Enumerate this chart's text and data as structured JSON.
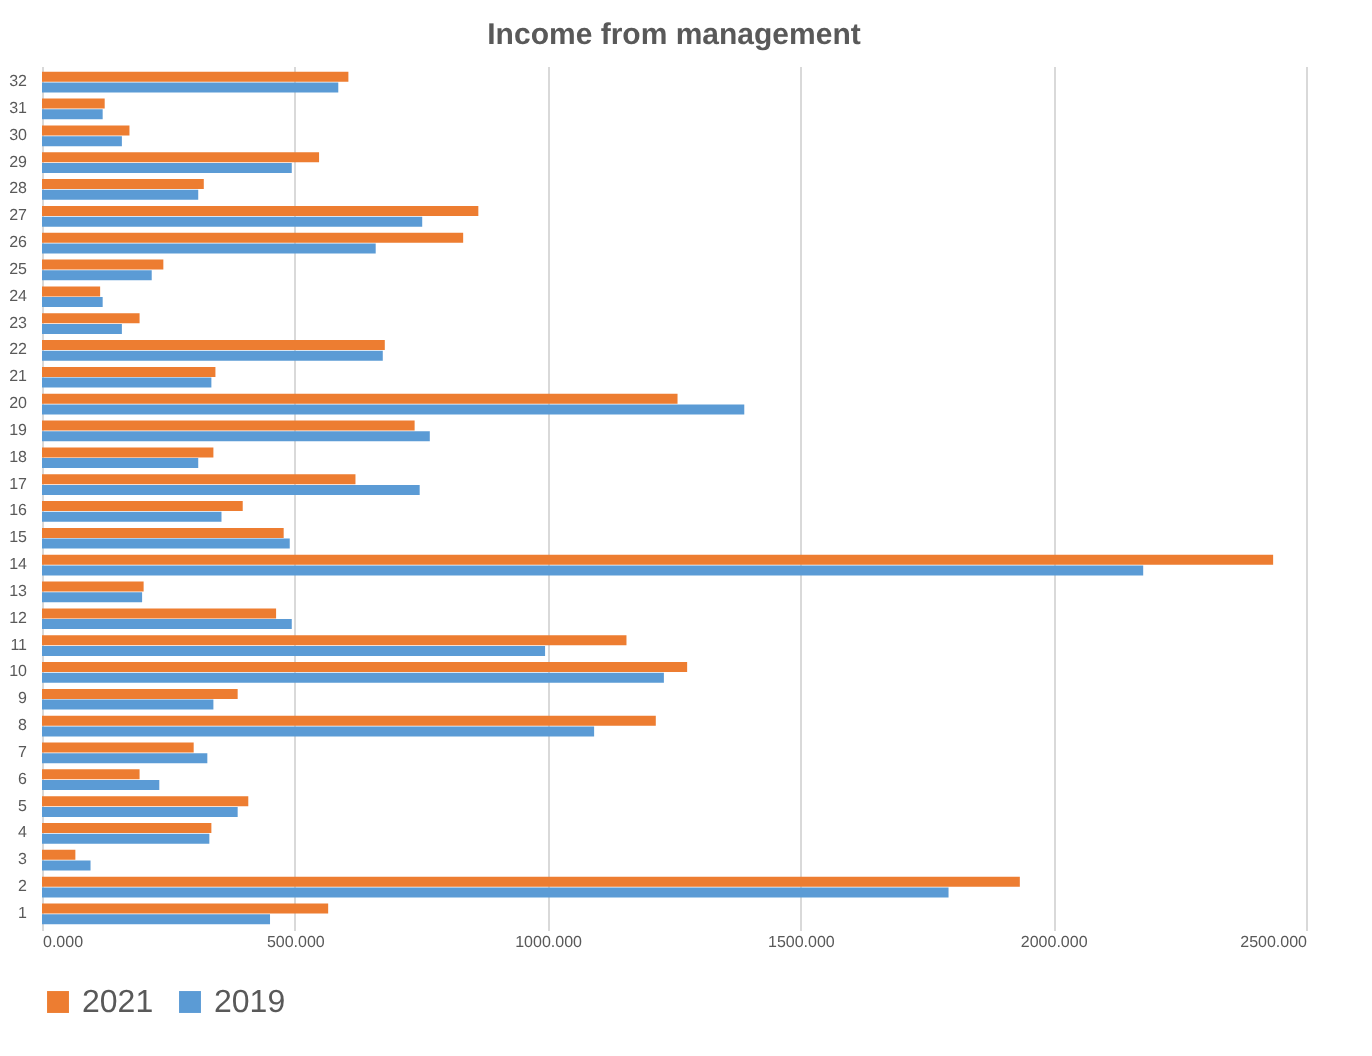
{
  "chart_data": {
    "type": "bar",
    "orientation": "horizontal",
    "title": "Income from management",
    "categories": [
      "32",
      "31",
      "30",
      "29",
      "28",
      "27",
      "26",
      "25",
      "24",
      "23",
      "22",
      "21",
      "20",
      "19",
      "18",
      "17",
      "16",
      "15",
      "14",
      "13",
      "12",
      "11",
      "10",
      "9",
      "8",
      "7",
      "6",
      "5",
      "4",
      "3",
      "2",
      "1"
    ],
    "series": [
      {
        "name": "2021",
        "color": "#ed7d31",
        "values": [
          606,
          124,
          173,
          548,
          320,
          863,
          833,
          240,
          115,
          193,
          678,
          343,
          1257,
          737,
          339,
          620,
          397,
          478,
          2435,
          201,
          463,
          1156,
          1276,
          387,
          1214,
          300,
          193,
          408,
          335,
          66,
          1934,
          566
        ]
      },
      {
        "name": "2019",
        "color": "#5b9bd5",
        "values": [
          586,
          120,
          158,
          494,
          309,
          752,
          660,
          217,
          120,
          158,
          674,
          335,
          1389,
          767,
          309,
          747,
          355,
          490,
          2178,
          198,
          494,
          995,
          1230,
          339,
          1092,
          327,
          232,
          387,
          331,
          96,
          1793,
          451
        ]
      }
    ],
    "xlim": [
      0,
      2500
    ],
    "xticks": [
      {
        "value": 0,
        "label": "0.000"
      },
      {
        "value": 500,
        "label": "500.000"
      },
      {
        "value": 1000,
        "label": "1000.000"
      },
      {
        "value": 1500,
        "label": "1500.000"
      },
      {
        "value": 2000,
        "label": "2000.000"
      },
      {
        "value": 2500,
        "label": "2500.000"
      }
    ],
    "grid": "x",
    "legend": "bottom"
  }
}
